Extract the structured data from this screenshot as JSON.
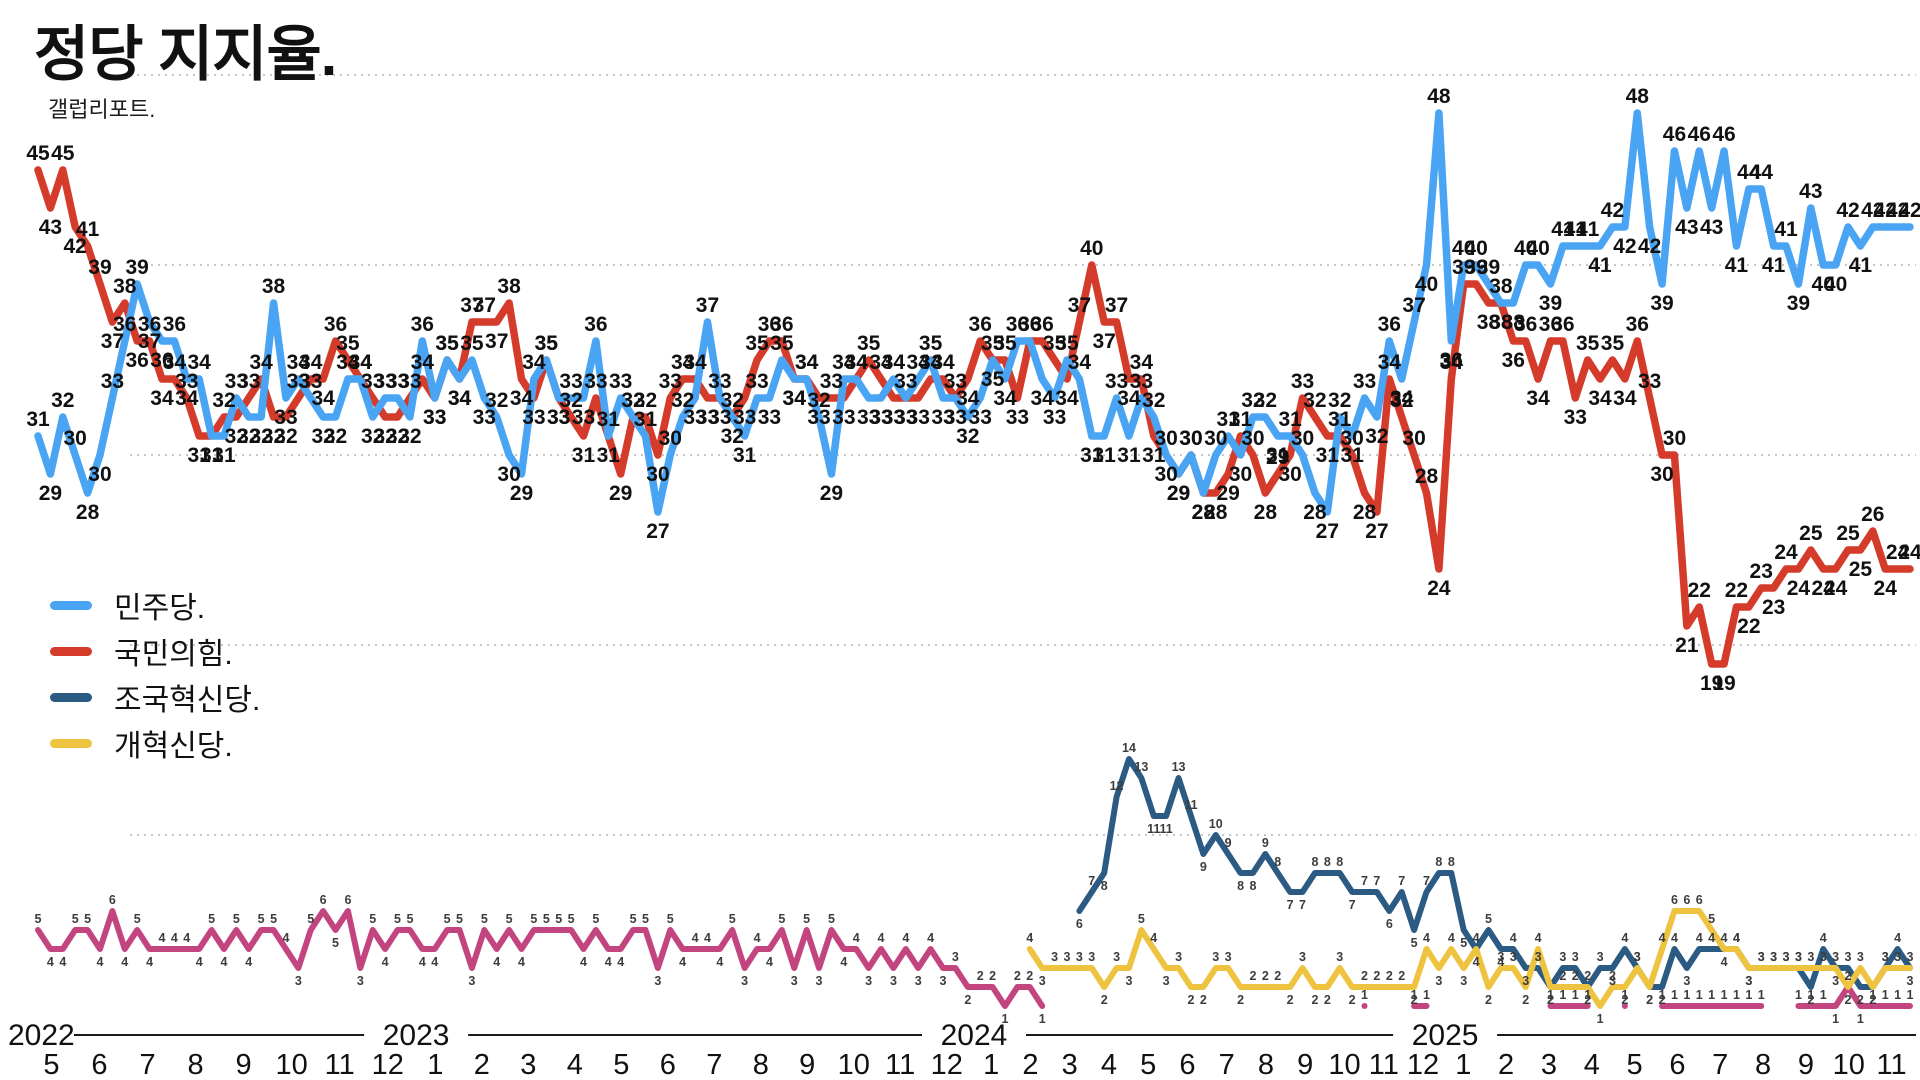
{
  "title": "정당 지지율.",
  "subtitle": "갤럽리포트.",
  "legend": [
    {
      "label": "민주당.",
      "color": "#4aa4f4"
    },
    {
      "label": "국민의힘.",
      "color": "#d53b2b"
    },
    {
      "label": "조국혁신당.",
      "color": "#2b5a83"
    },
    {
      "label": "개혁신당.",
      "color": "#eec33f"
    }
  ],
  "chart_data": {
    "type": "line",
    "title": "정당 지지율.",
    "subtitle": "갤럽리포트.",
    "ylim": [
      0,
      50
    ],
    "y_gridlines": [
      10,
      20,
      30,
      40,
      50
    ],
    "grid": "dotted horizontal, no y tick labels; every point carries a value label",
    "legend_position": "left-middle",
    "x_axis": {
      "groups": [
        {
          "year": "2022",
          "months": [
            "5",
            "6",
            "7",
            "8",
            "9",
            "10",
            "11",
            "12"
          ]
        },
        {
          "year": "2023",
          "months": [
            "1",
            "2",
            "3",
            "4",
            "5",
            "6",
            "7",
            "8",
            "9",
            "10",
            "11",
            "12"
          ]
        },
        {
          "year": "2024",
          "months": [
            "1",
            "2",
            "3",
            "4",
            "5",
            "6",
            "7",
            "8",
            "9",
            "10",
            "11",
            "12"
          ]
        },
        {
          "year": "2025",
          "months": [
            "1",
            "2",
            "3",
            "4",
            "5",
            "6",
            "7",
            "8",
            "9",
            "10",
            "11"
          ]
        }
      ]
    },
    "series": [
      {
        "name": "민주당.",
        "color": "#4aa4f4",
        "values": [
          31,
          29,
          32,
          30,
          28,
          30,
          33,
          36,
          39,
          37,
          36,
          36,
          34,
          34,
          31,
          31,
          33,
          32,
          32,
          38,
          33,
          34,
          33,
          32,
          32,
          34,
          34,
          32,
          33,
          33,
          32,
          36,
          33,
          35,
          34,
          35,
          33,
          32,
          30,
          29,
          34,
          35,
          33,
          33,
          33,
          36,
          31,
          33,
          32,
          31,
          27,
          30,
          32,
          33,
          37,
          33,
          32,
          31,
          33,
          33,
          35,
          34,
          34,
          32,
          29,
          34,
          34,
          33,
          33,
          34,
          33,
          34,
          35,
          33,
          33,
          32,
          33,
          35,
          34,
          36,
          36,
          34,
          33,
          35,
          34,
          31,
          31,
          33,
          31,
          33,
          32,
          30,
          29,
          30,
          28,
          30,
          31,
          30,
          32,
          32,
          31,
          31,
          30,
          28,
          27,
          32,
          31,
          33,
          32,
          36,
          34,
          37,
          40,
          48,
          36,
          40,
          40,
          39,
          38,
          38,
          40,
          40,
          39,
          41,
          41,
          41,
          41,
          42,
          42,
          48,
          42,
          39,
          46,
          43,
          46,
          43,
          46,
          41,
          44,
          44,
          41,
          41,
          39,
          43,
          40,
          40,
          42,
          41,
          42,
          42,
          42,
          42
        ]
      },
      {
        "name": "국민의힘.",
        "color": "#d53b2b",
        "values": [
          45,
          43,
          45,
          42,
          41,
          39,
          37,
          38,
          36,
          36,
          34,
          34,
          33,
          31,
          31,
          32,
          32,
          33,
          34,
          32,
          32,
          33,
          34,
          34,
          36,
          35,
          34,
          33,
          32,
          32,
          33,
          34,
          33,
          35,
          34,
          37,
          37,
          37,
          38,
          34,
          33,
          35,
          33,
          32,
          31,
          33,
          31,
          29,
          32,
          32,
          30,
          33,
          34,
          34,
          33,
          33,
          32,
          33,
          35,
          36,
          36,
          34,
          34,
          33,
          33,
          33,
          34,
          35,
          34,
          33,
          33,
          33,
          34,
          34,
          33,
          34,
          36,
          35,
          35,
          33,
          36,
          36,
          35,
          34,
          37,
          40,
          37,
          37,
          34,
          34,
          31,
          30,
          29,
          30,
          28,
          28,
          29,
          31,
          30,
          28,
          29,
          30,
          33,
          32,
          31,
          31,
          30,
          28,
          27,
          34,
          32,
          30,
          28,
          24,
          34,
          39,
          39,
          38,
          38,
          36,
          36,
          34,
          36,
          36,
          33,
          35,
          34,
          35,
          34,
          36,
          33,
          30,
          30,
          21,
          22,
          19,
          19,
          22,
          22,
          23,
          23,
          24,
          24,
          25,
          24,
          24,
          25,
          25,
          26,
          24,
          24,
          24
        ]
      },
      {
        "name": "조국혁신당.",
        "color": "#2b5a83",
        "values": [
          null,
          null,
          null,
          null,
          null,
          null,
          null,
          null,
          null,
          null,
          null,
          null,
          null,
          null,
          null,
          null,
          null,
          null,
          null,
          null,
          null,
          null,
          null,
          null,
          null,
          null,
          null,
          null,
          null,
          null,
          null,
          null,
          null,
          null,
          null,
          null,
          null,
          null,
          null,
          null,
          null,
          null,
          null,
          null,
          null,
          null,
          null,
          null,
          null,
          null,
          null,
          null,
          null,
          null,
          null,
          null,
          null,
          null,
          null,
          null,
          null,
          null,
          null,
          null,
          null,
          null,
          null,
          null,
          null,
          null,
          null,
          null,
          null,
          null,
          null,
          null,
          null,
          null,
          null,
          null,
          null,
          null,
          null,
          null,
          6,
          7,
          8,
          12,
          14,
          13,
          11,
          11,
          13,
          11,
          9,
          10,
          9,
          8,
          8,
          9,
          8,
          7,
          7,
          8,
          8,
          8,
          7,
          7,
          7,
          6,
          7,
          5,
          7,
          8,
          8,
          5,
          4,
          5,
          4,
          4,
          3,
          3,
          2,
          3,
          3,
          2,
          3,
          3,
          4,
          3,
          2,
          2,
          4,
          3,
          4,
          4,
          4,
          4,
          3,
          3,
          3,
          3,
          3,
          2,
          4,
          3,
          3,
          2,
          2,
          3,
          4,
          3
        ]
      },
      {
        "name": "개혁신당.",
        "color": "#eec33f",
        "values": [
          null,
          null,
          null,
          null,
          null,
          null,
          null,
          null,
          null,
          null,
          null,
          null,
          null,
          null,
          null,
          null,
          null,
          null,
          null,
          null,
          null,
          null,
          null,
          null,
          null,
          null,
          null,
          null,
          null,
          null,
          null,
          null,
          null,
          null,
          null,
          null,
          null,
          null,
          null,
          null,
          null,
          null,
          null,
          null,
          null,
          null,
          null,
          null,
          null,
          null,
          null,
          null,
          null,
          null,
          null,
          null,
          null,
          null,
          null,
          null,
          null,
          null,
          null,
          null,
          null,
          null,
          null,
          null,
          null,
          null,
          null,
          null,
          null,
          null,
          null,
          null,
          null,
          null,
          null,
          null,
          4,
          3,
          3,
          3,
          3,
          3,
          2,
          3,
          3,
          5,
          4,
          3,
          3,
          2,
          2,
          3,
          3,
          2,
          2,
          2,
          2,
          2,
          3,
          2,
          2,
          3,
          2,
          2,
          2,
          2,
          2,
          2,
          4,
          3,
          4,
          3,
          4,
          2,
          3,
          3,
          2,
          4,
          2,
          2,
          2,
          2,
          1,
          2,
          2,
          3,
          2,
          4,
          6,
          6,
          6,
          5,
          4,
          4,
          3,
          3,
          3,
          3,
          3,
          3,
          3,
          3,
          2,
          3,
          2,
          3,
          3,
          3
        ]
      },
      {
        "name": "",
        "color": "#c3457f",
        "values": [
          5,
          4,
          4,
          5,
          5,
          4,
          6,
          4,
          5,
          4,
          4,
          4,
          4,
          4,
          5,
          4,
          5,
          4,
          5,
          5,
          4,
          3,
          5,
          6,
          5,
          6,
          3,
          5,
          4,
          5,
          5,
          4,
          4,
          5,
          5,
          3,
          5,
          4,
          5,
          4,
          5,
          5,
          5,
          5,
          4,
          5,
          4,
          4,
          5,
          5,
          3,
          5,
          4,
          4,
          4,
          4,
          5,
          3,
          4,
          4,
          5,
          3,
          5,
          3,
          5,
          4,
          4,
          3,
          4,
          3,
          4,
          3,
          4,
          3,
          3,
          2,
          2,
          2,
          1,
          2,
          2,
          1,
          null,
          null,
          null,
          null,
          null,
          null,
          null,
          null,
          null,
          null,
          null,
          null,
          null,
          null,
          null,
          null,
          null,
          null,
          null,
          null,
          null,
          null,
          null,
          null,
          null,
          1,
          null,
          null,
          null,
          1,
          1,
          null,
          null,
          null,
          null,
          null,
          null,
          null,
          null,
          null,
          1,
          1,
          1,
          1,
          null,
          null,
          1,
          null,
          null,
          1,
          1,
          1,
          1,
          1,
          1,
          1,
          1,
          1,
          null,
          null,
          1,
          1,
          1,
          1,
          2,
          1,
          1,
          1,
          1,
          1
        ]
      }
    ]
  }
}
